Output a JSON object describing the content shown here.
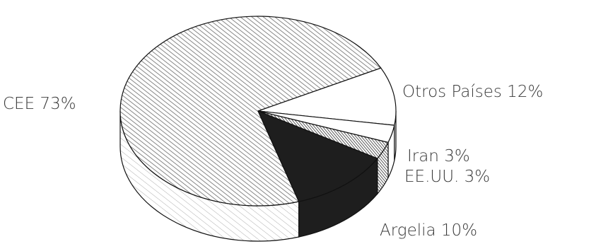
{
  "chart_data": {
    "type": "pie",
    "style": "3d",
    "title": "",
    "slices": [
      {
        "label": "CEE 73%",
        "category": "CEE",
        "value": 73,
        "fill": "hatch",
        "color": "#555555"
      },
      {
        "label": "Argelia 10%",
        "category": "Argelia",
        "value": 10,
        "fill": "white",
        "color": "#ffffff"
      },
      {
        "label": "EE.UU. 3%",
        "category": "EE.UU.",
        "value": 3,
        "fill": "white",
        "color": "#ffffff"
      },
      {
        "label": "Iran 3%",
        "category": "Iran",
        "value": 3,
        "fill": "hatch-dense",
        "color": "#444444"
      },
      {
        "label": "Otros Países 12%",
        "category": "Otros Países",
        "value": 12,
        "fill": "solid",
        "color": "#1e1e1e"
      }
    ],
    "legend": "none"
  }
}
